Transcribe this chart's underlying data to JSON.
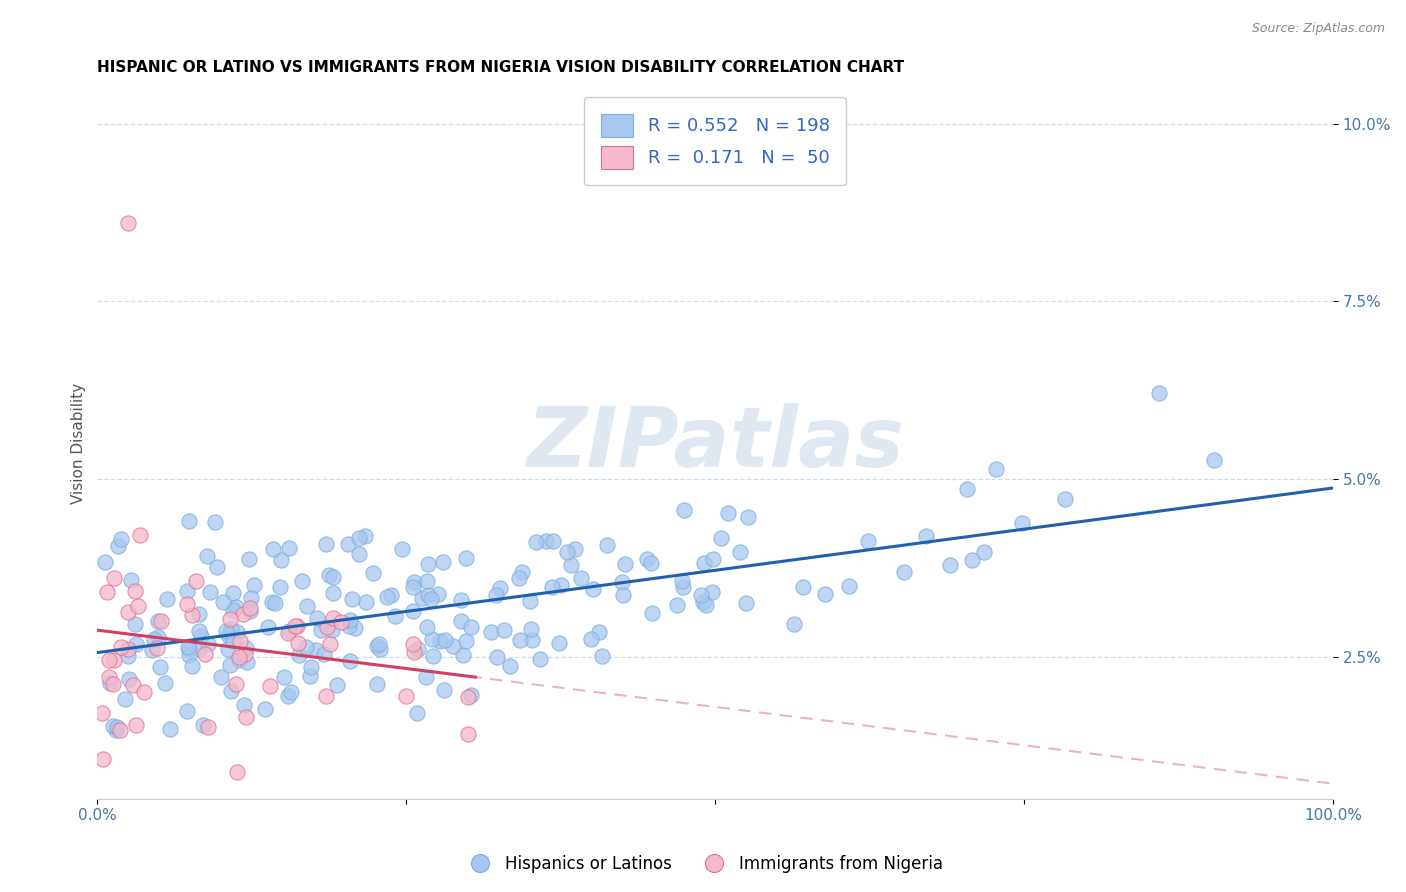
{
  "title": "HISPANIC OR LATINO VS IMMIGRANTS FROM NIGERIA VISION DISABILITY CORRELATION CHART",
  "source": "Source: ZipAtlas.com",
  "xlabel": "",
  "ylabel": "Vision Disability",
  "watermark": "ZIPatlas",
  "xlim": [
    0.0,
    1.0
  ],
  "ylim": [
    0.005,
    0.105
  ],
  "xticks": [
    0.0,
    0.25,
    0.5,
    0.75,
    1.0
  ],
  "xticklabels": [
    "0.0%",
    "",
    "",
    "",
    "100.0%"
  ],
  "yticks": [
    0.025,
    0.05,
    0.075,
    0.1
  ],
  "yticklabels": [
    "2.5%",
    "5.0%",
    "7.5%",
    "10.0%"
  ],
  "blue_R": 0.552,
  "blue_N": 198,
  "pink_R": 0.171,
  "pink_N": 50,
  "blue_color": "#a8c8f0",
  "blue_edge_color": "#7aaee0",
  "pink_color": "#f5b8cc",
  "pink_edge_color": "#e07090",
  "blue_line_color": "#2060b0",
  "pink_line_color": "#d04060",
  "pink_dash_color": "#e08098",
  "title_fontsize": 11,
  "axis_label_fontsize": 11,
  "tick_fontsize": 11,
  "legend_fontsize": 13,
  "blue_seed": 42,
  "pink_seed": 123
}
